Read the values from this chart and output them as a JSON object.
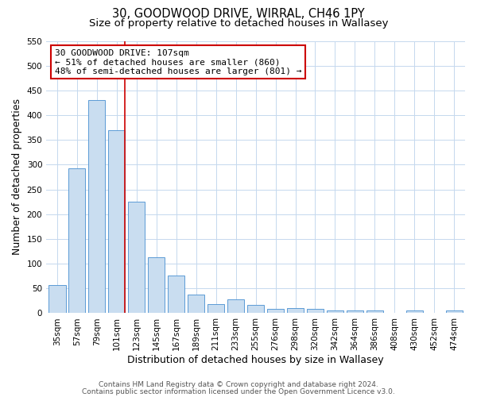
{
  "title": "30, GOODWOOD DRIVE, WIRRAL, CH46 1PY",
  "subtitle": "Size of property relative to detached houses in Wallasey",
  "xlabel": "Distribution of detached houses by size in Wallasey",
  "ylabel": "Number of detached properties",
  "bar_labels": [
    "35sqm",
    "57sqm",
    "79sqm",
    "101sqm",
    "123sqm",
    "145sqm",
    "167sqm",
    "189sqm",
    "211sqm",
    "233sqm",
    "255sqm",
    "276sqm",
    "298sqm",
    "320sqm",
    "342sqm",
    "364sqm",
    "386sqm",
    "408sqm",
    "430sqm",
    "452sqm",
    "474sqm"
  ],
  "bar_values": [
    57,
    293,
    430,
    370,
    226,
    113,
    76,
    37,
    18,
    28,
    16,
    8,
    10,
    8,
    5,
    5,
    6,
    0,
    5,
    0,
    5
  ],
  "bar_color": "#c9ddf0",
  "bar_edge_color": "#5b9bd5",
  "vline_color": "#cc0000",
  "vline_index": 3,
  "ylim": [
    0,
    550
  ],
  "yticks": [
    0,
    50,
    100,
    150,
    200,
    250,
    300,
    350,
    400,
    450,
    500,
    550
  ],
  "annotation_title": "30 GOODWOOD DRIVE: 107sqm",
  "annotation_line1": "← 51% of detached houses are smaller (860)",
  "annotation_line2": "48% of semi-detached houses are larger (801) →",
  "annotation_box_color": "#ffffff",
  "annotation_box_edge": "#cc0000",
  "footer_line1": "Contains HM Land Registry data © Crown copyright and database right 2024.",
  "footer_line2": "Contains public sector information licensed under the Open Government Licence v3.0.",
  "bg_color": "#ffffff",
  "grid_color": "#c5d8ee",
  "title_fontsize": 10.5,
  "subtitle_fontsize": 9.5,
  "axis_label_fontsize": 9,
  "tick_fontsize": 7.5,
  "annotation_fontsize": 8,
  "footer_fontsize": 6.5
}
